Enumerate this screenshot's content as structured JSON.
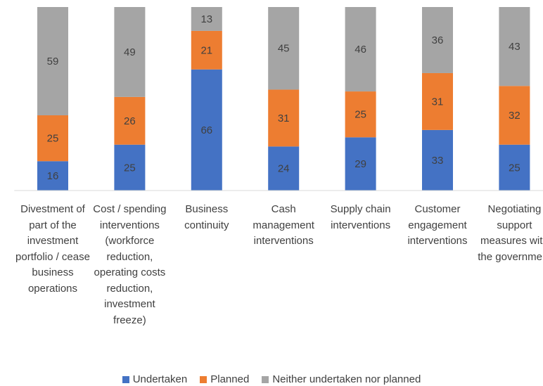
{
  "chart_data": {
    "type": "stacked_bar",
    "categories": [
      "Divestment of part of the investment portfolio / cease business operations",
      "Cost / spending interventions (workforce reduction, operating costs reduction, investment freeze)",
      "Business continuity",
      "Cash management interventions",
      "Supply chain interventions",
      "Customer engagement interventions",
      "Negotiating support measures with the government"
    ],
    "series": [
      {
        "name": "Undertaken",
        "color": "#4472c4",
        "values": [
          16,
          25,
          66,
          24,
          29,
          33,
          25
        ]
      },
      {
        "name": "Planned",
        "color": "#ed7d31",
        "values": [
          25,
          26,
          21,
          31,
          25,
          31,
          32
        ]
      },
      {
        "name": "Neither undertaken nor planned",
        "color": "#a5a5a5",
        "values": [
          59,
          49,
          13,
          45,
          46,
          36,
          43
        ]
      }
    ],
    "ylim": [
      0,
      100
    ],
    "legend": "bottom"
  }
}
